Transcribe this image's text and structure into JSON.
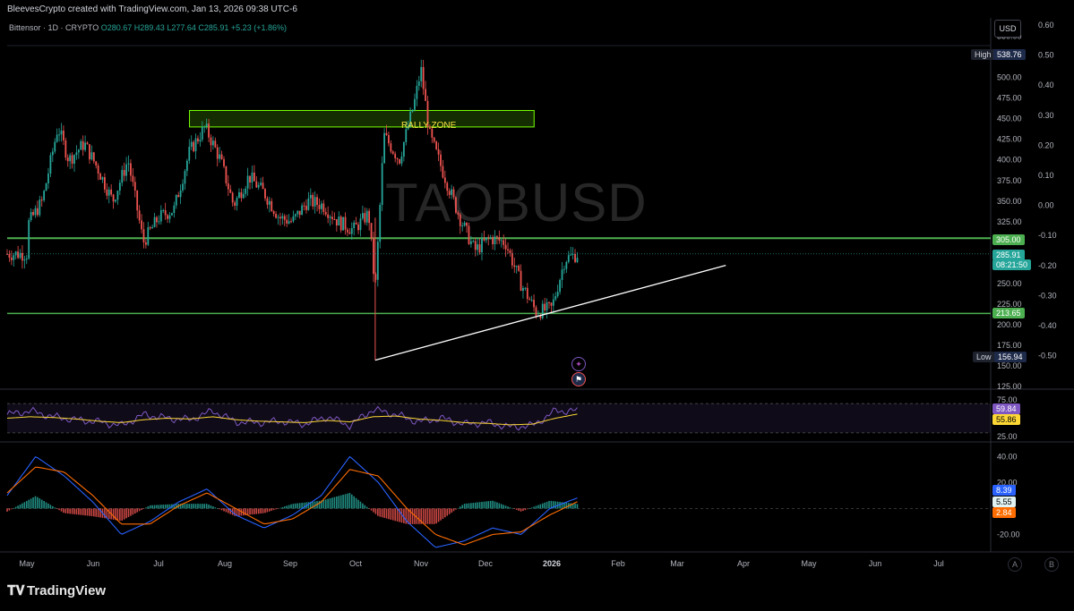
{
  "header": {
    "attribution": "BleevesCrypto created with TradingView.com, Jan 13, 2026 09:38 UTC-6"
  },
  "symbol_line": {
    "name": "Bittensor · 1D · CRYPTO",
    "open": "O280.67",
    "high": "H289.43",
    "low": "L277.64",
    "close": "C285.91",
    "change": "+5.23 (+1.86%)"
  },
  "watermark": "TAOBUSD",
  "annotations": {
    "rally_zone_label": "RALLY ZONE"
  },
  "currency_button": "USD",
  "footer": {
    "logo_text": "TradingView"
  },
  "scale_buttons": {
    "auto": "A",
    "log": "B"
  },
  "price_tags": {
    "high_label": "High",
    "high_value": "538.76",
    "low_label": "Low",
    "low_value": "156.94",
    "resistance": "305.00",
    "last_price": "285.91",
    "countdown": "08:21:50",
    "support": "213.65"
  },
  "indicator_tags": {
    "rsi": "59.84",
    "rsi_ma": "55.86",
    "macd": "8.39",
    "macd_signal": "5.55",
    "macd_hist": "2.84"
  },
  "colors": {
    "up": "#26a69a",
    "down": "#ef5350",
    "level_line": "#4caf50",
    "rally_zone": "#76ff03",
    "rsi": "#7e57c2",
    "rsi_ma": "#fdd835",
    "macd": "#2962ff",
    "signal": "#ff6d00",
    "trendline": "#ffffff"
  },
  "chart_data": [
    {
      "type": "candlestick",
      "title": "Bittensor · 1D · CRYPTO",
      "x_ticks": [
        "May",
        "Jun",
        "Jul",
        "Aug",
        "Sep",
        "Oct",
        "Nov",
        "Dec",
        "2026",
        "Feb",
        "Mar",
        "Apr",
        "May",
        "Jun",
        "Jul"
      ],
      "y_ticks_left": [
        "550.00",
        "525.00",
        "500.00",
        "475.00",
        "450.00",
        "425.00",
        "400.00",
        "375.00",
        "350.00",
        "325.00",
        "300.00",
        "275.00",
        "250.00",
        "225.00",
        "200.00",
        "175.00",
        "150.00",
        "125.00"
      ],
      "y_ticks_right": [
        "0.60",
        "0.50",
        "0.40",
        "0.30",
        "0.20",
        "0.10",
        "0.00",
        "-0.10",
        "-0.20",
        "-0.30",
        "-0.40",
        "-0.50"
      ],
      "ylim": [
        125,
        555
      ],
      "path_close": [
        [
          "May 1",
          320
        ],
        [
          "May 8",
          350
        ],
        [
          "May 15",
          440
        ],
        [
          "May 20",
          400
        ],
        [
          "May 27",
          420
        ],
        [
          "Jun 3",
          390
        ],
        [
          "Jun 10",
          350
        ],
        [
          "Jun 17",
          400
        ],
        [
          "Jun 24",
          300
        ],
        [
          "Jul 1",
          330
        ],
        [
          "Jul 8",
          340
        ],
        [
          "Jul 15",
          410
        ],
        [
          "Jul 22",
          440
        ],
        [
          "Jul 29",
          400
        ],
        [
          "Aug 5",
          345
        ],
        [
          "Aug 12",
          380
        ],
        [
          "Aug 19",
          360
        ],
        [
          "Aug 26",
          330
        ],
        [
          "Sep 2",
          325
        ],
        [
          "Sep 9",
          350
        ],
        [
          "Sep 16",
          345
        ],
        [
          "Sep 23",
          325
        ],
        [
          "Sep 30",
          315
        ],
        [
          "Oct 7",
          335
        ],
        [
          "Oct 10",
          240
        ],
        [
          "Oct 14",
          430
        ],
        [
          "Oct 21",
          400
        ],
        [
          "Oct 28",
          470
        ],
        [
          "Nov 1",
          510
        ],
        [
          "Nov 5",
          430
        ],
        [
          "Nov 12",
          380
        ],
        [
          "Nov 19",
          330
        ],
        [
          "Nov 26",
          290
        ],
        [
          "Dec 3",
          305
        ],
        [
          "Dec 10",
          300
        ],
        [
          "Dec 17",
          250
        ],
        [
          "Dec 24",
          215
        ],
        [
          "Dec 31",
          220
        ],
        [
          "Jan 7",
          280
        ],
        [
          "Jan 13",
          285.91
        ]
      ],
      "levels": {
        "resistance": 305.0,
        "support": 213.65,
        "high": 538.76,
        "low": 156.94
      },
      "rally_zone": {
        "from": "Jul 15",
        "to": "Dec 23",
        "low": 440,
        "high": 460,
        "label": "RALLY ZONE"
      },
      "trendline": [
        [
          "Oct 10",
          156.94
        ],
        [
          "Mar 23",
          272
        ]
      ]
    },
    {
      "type": "line",
      "title": "RSI",
      "y_ticks": [
        "75.00",
        "25.00"
      ],
      "ylim": [
        25,
        75
      ],
      "series": [
        {
          "name": "RSI",
          "values": [
            55,
            60,
            52,
            48,
            45,
            40,
            55,
            50,
            48,
            60,
            45,
            44,
            46,
            42,
            52,
            40,
            62,
            55,
            45,
            50,
            42,
            44,
            38,
            40,
            60,
            59.84
          ]
        },
        {
          "name": "RSI MA",
          "values": [
            50,
            52,
            51,
            49,
            46,
            44,
            48,
            50,
            49,
            52,
            48,
            46,
            45,
            44,
            47,
            45,
            52,
            53,
            49,
            47,
            44,
            43,
            41,
            42,
            50,
            55.86
          ]
        }
      ]
    },
    {
      "type": "line",
      "title": "MACD",
      "y_ticks": [
        "40.00",
        "20.00",
        "-20.00"
      ],
      "ylim": [
        -30,
        45
      ],
      "series": [
        {
          "name": "MACD",
          "values": [
            10,
            40,
            25,
            5,
            -20,
            -10,
            5,
            15,
            -5,
            -15,
            -5,
            10,
            40,
            20,
            -10,
            -30,
            -25,
            -15,
            -20,
            0,
            8.39
          ]
        },
        {
          "name": "Signal",
          "values": [
            12,
            32,
            28,
            10,
            -12,
            -12,
            2,
            12,
            0,
            -12,
            -8,
            5,
            30,
            25,
            0,
            -20,
            -28,
            -20,
            -18,
            -5,
            5.55
          ]
        }
      ]
    }
  ]
}
